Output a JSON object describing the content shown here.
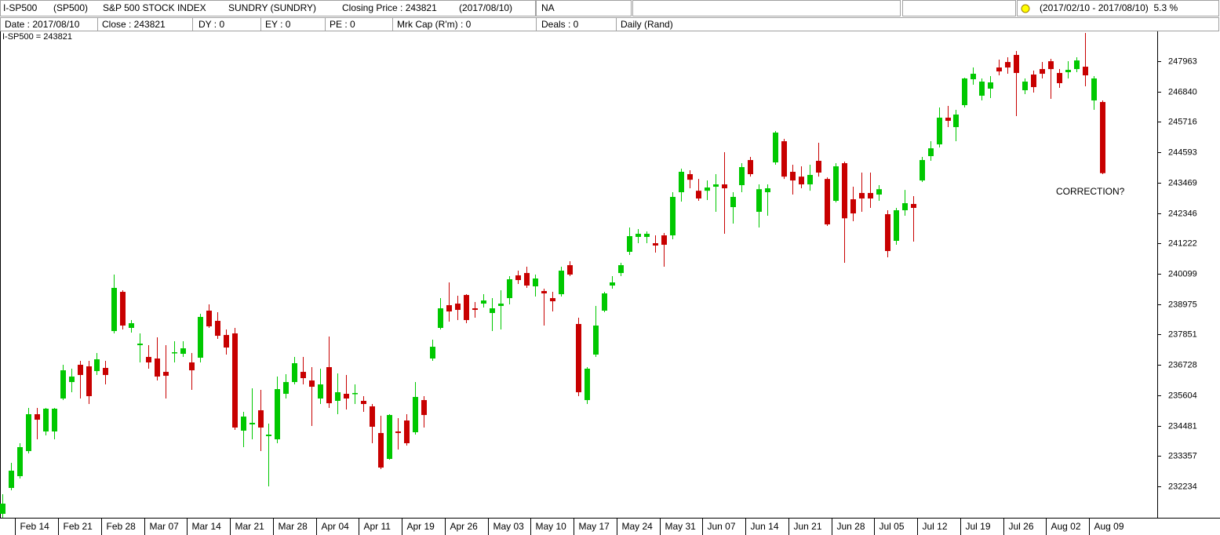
{
  "toolbar": {
    "items": [
      "I-SP500",
      "(SP500)",
      "S&P 500 STOCK INDEX",
      "SUNDRY (SUNDRY)",
      "Closing Price : 243821",
      "(2017/08/10)",
      "NA"
    ],
    "period": "(2017/02/10 - 2017/08/10)  5.3 %"
  },
  "infobar": [
    "Date : 2017/08/10",
    "Close : 243821",
    "DY : 0",
    "EY : 0",
    "PE : 0",
    "Mrk Cap (R'm) : 0",
    "Deals : 0",
    "Daily (Rand)"
  ],
  "chart_data": {
    "type": "candlestick",
    "label": "I-SP500 = 243821",
    "label_color": "#e00000",
    "annotations": [
      {
        "text": "CORRECTION?",
        "color": "#2222dd"
      }
    ],
    "up_color": "#00c800",
    "down_color": "#c80000",
    "categories": [
      null,
      null,
      "Feb 14",
      null,
      null,
      null,
      null,
      "Feb 21",
      null,
      null,
      null,
      null,
      "Feb 28",
      null,
      null,
      null,
      null,
      "Mar 07",
      null,
      null,
      null,
      null,
      "Mar 14",
      null,
      null,
      null,
      null,
      "Mar 21",
      null,
      null,
      null,
      null,
      "Mar 28",
      null,
      null,
      null,
      null,
      "Apr 04",
      null,
      null,
      null,
      null,
      "Apr 11",
      null,
      null,
      null,
      null,
      "Apr 19",
      null,
      null,
      null,
      null,
      "Apr 26",
      null,
      null,
      null,
      null,
      "May 03",
      null,
      null,
      null,
      null,
      "May 10",
      null,
      null,
      null,
      null,
      "May 17",
      null,
      null,
      null,
      null,
      "May 24",
      null,
      null,
      null,
      null,
      "May 31",
      null,
      null,
      null,
      null,
      "Jun 07",
      null,
      null,
      null,
      null,
      "Jun 14",
      null,
      null,
      null,
      null,
      "Jun 21",
      null,
      null,
      null,
      null,
      "Jun 28",
      null,
      null,
      null,
      null,
      "Jul 05",
      null,
      null,
      null,
      null,
      "Jul 12",
      null,
      null,
      null,
      null,
      "Jul 19",
      null,
      null,
      null,
      null,
      "Jul 26",
      null,
      null,
      null,
      null,
      "Aug 02",
      null,
      null,
      null,
      null,
      "Aug 09",
      null
    ],
    "open": [
      231218,
      232176,
      232611,
      233539,
      234903,
      234265,
      234265,
      235484,
      236093,
      236732,
      236674,
      236499,
      236616,
      237980,
      239430,
      238096,
      237457,
      237022,
      236964,
      236470,
      237167,
      237138,
      236819,
      236993,
      238734,
      238357,
      237834,
      237893,
      234294,
      234526,
      235049,
      234091,
      233975,
      235658,
      236093,
      236470,
      236151,
      235484,
      236645,
      235397,
      235658,
      235658,
      235397,
      235194,
      234207,
      233249,
      234265,
      234671,
      234236,
      235426,
      236964,
      238096,
      238937,
      238995,
      239314,
      238821,
      238995,
      238647,
      238908,
      239198,
      240040,
      240127,
      239634,
      239460,
      239198,
      239343,
      240417,
      238241,
      235426,
      237109,
      238734,
      239663,
      240127,
      240911,
      241462,
      241462,
      241230,
      241520,
      241520,
      243116,
      243784,
      243170,
      243170,
      243319,
      243406,
      242565,
      243377,
      244306,
      242391,
      243116,
      244219,
      245002,
      243871,
      243693,
      243406,
      244277,
      243606,
      242797,
      244190,
      242855,
      243087,
      243087,
      243029,
      242303,
      241317,
      242449,
      242681,
      243551,
      244451,
      244886,
      245873,
      245525,
      246337,
      247295,
      246686,
      246947,
      247730,
      247933,
      248195,
      246889,
      247469,
      247672,
      247962,
      247527,
      247556,
      247672,
      247759,
      246511,
      246453
    ],
    "high": [
      231943,
      233104,
      233830,
      235136,
      235136,
      235136,
      235136,
      236732,
      236587,
      236877,
      236877,
      237167,
      236877,
      240069,
      239489,
      238386,
      237893,
      237457,
      237747,
      237457,
      237602,
      237602,
      237167,
      238618,
      238966,
      238676,
      238038,
      238096,
      234991,
      235861,
      235803,
      234555,
      236296,
      236383,
      237022,
      237022,
      236645,
      236587,
      237776,
      236412,
      236354,
      236006,
      235571,
      235281,
      234845,
      234903,
      234758,
      234903,
      236093,
      235571,
      237660,
      239198,
      239779,
      239285,
      239343,
      239053,
      239343,
      239198,
      239489,
      240011,
      240214,
      240359,
      240069,
      239547,
      239430,
      240359,
      240562,
      238473,
      236645,
      238908,
      239430,
      240011,
      240504,
      241810,
      241752,
      241665,
      241520,
      241607,
      243116,
      243987,
      243929,
      243606,
      243551,
      243784,
      244596,
      243116,
      244190,
      244422,
      243406,
      243406,
      245380,
      245090,
      244132,
      244074,
      244132,
      244944,
      243664,
      244190,
      244248,
      243319,
      243842,
      243842,
      243377,
      242449,
      242536,
      243199,
      242971,
      244422,
      245002,
      246250,
      246308,
      246163,
      247353,
      247730,
      247324,
      247411,
      248020,
      248108,
      248340,
      247324,
      247614,
      247933,
      248049,
      247672,
      247962,
      248108,
      249007,
      247411,
      246511
    ],
    "low": [
      231073,
      232089,
      232524,
      233452,
      233975,
      234120,
      233975,
      235426,
      235716,
      235484,
      235281,
      236354,
      236006,
      237893,
      238038,
      237922,
      236819,
      236587,
      236151,
      235484,
      236819,
      237022,
      235803,
      236819,
      238096,
      237689,
      237109,
      234323,
      233685,
      233975,
      233539,
      232234,
      233830,
      235484,
      236006,
      236006,
      234468,
      235281,
      235136,
      234903,
      235078,
      235281,
      234991,
      233830,
      232872,
      233220,
      233597,
      233743,
      234149,
      234410,
      236877,
      238038,
      238328,
      238386,
      238270,
      238473,
      238850,
      237980,
      238038,
      238966,
      239721,
      239576,
      239256,
      238183,
      238705,
      239256,
      240011,
      235571,
      235281,
      237022,
      238676,
      239547,
      240011,
      240794,
      241230,
      241230,
      240882,
      240359,
      241375,
      242768,
      243261,
      242797,
      242826,
      242391,
      241578,
      241955,
      243116,
      243693,
      241810,
      242245,
      244132,
      243606,
      243029,
      243261,
      243170,
      243693,
      241868,
      242739,
      240504,
      242042,
      242391,
      242536,
      242797,
      240707,
      241172,
      242245,
      241288,
      243493,
      244277,
      244770,
      245525,
      245002,
      246250,
      247092,
      246511,
      246598,
      247440,
      247498,
      245931,
      246744,
      246802,
      247324,
      246569,
      246976,
      247324,
      247556,
      247034,
      246163,
      243784
    ],
    "close": [
      231595,
      232814,
      233685,
      234903,
      234700,
      235107,
      235107,
      236528,
      236296,
      236354,
      235571,
      236935,
      236354,
      239576,
      238183,
      238270,
      237515,
      236819,
      236296,
      236325,
      237196,
      237341,
      236528,
      238502,
      238154,
      237805,
      237370,
      234410,
      234816,
      234584,
      234410,
      234149,
      235832,
      236093,
      236790,
      236238,
      235919,
      236006,
      235310,
      235716,
      235484,
      235687,
      235281,
      234439,
      232930,
      234874,
      234207,
      233830,
      235542,
      234874,
      237399,
      238821,
      238705,
      238763,
      238386,
      238763,
      239111,
      238821,
      238995,
      239895,
      239866,
      239663,
      239924,
      239373,
      239082,
      240214,
      240069,
      235716,
      236587,
      238183,
      239373,
      239779,
      240417,
      241491,
      241578,
      241578,
      241143,
      241172,
      242942,
      243871,
      243577,
      242884,
      243290,
      243406,
      243261,
      242942,
      244045,
      243784,
      243228,
      243261,
      245322,
      243693,
      243551,
      243406,
      243755,
      243842,
      241926,
      244074,
      242151,
      242332,
      242884,
      242884,
      243228,
      240940,
      242449,
      242710,
      242536,
      244306,
      244741,
      245873,
      245757,
      245989,
      247324,
      247498,
      247208,
      247179,
      247585,
      247730,
      247527,
      247208,
      247005,
      247498,
      247672,
      247150,
      247643,
      247991,
      247440,
      247324,
      243821
    ],
    "ylim": [
      231073,
      249066
    ],
    "yticks": [
      232234,
      233357,
      234481,
      235604,
      236728,
      237851,
      238975,
      240099,
      241222,
      242346,
      243469,
      244593,
      245716,
      246840,
      247963
    ]
  }
}
